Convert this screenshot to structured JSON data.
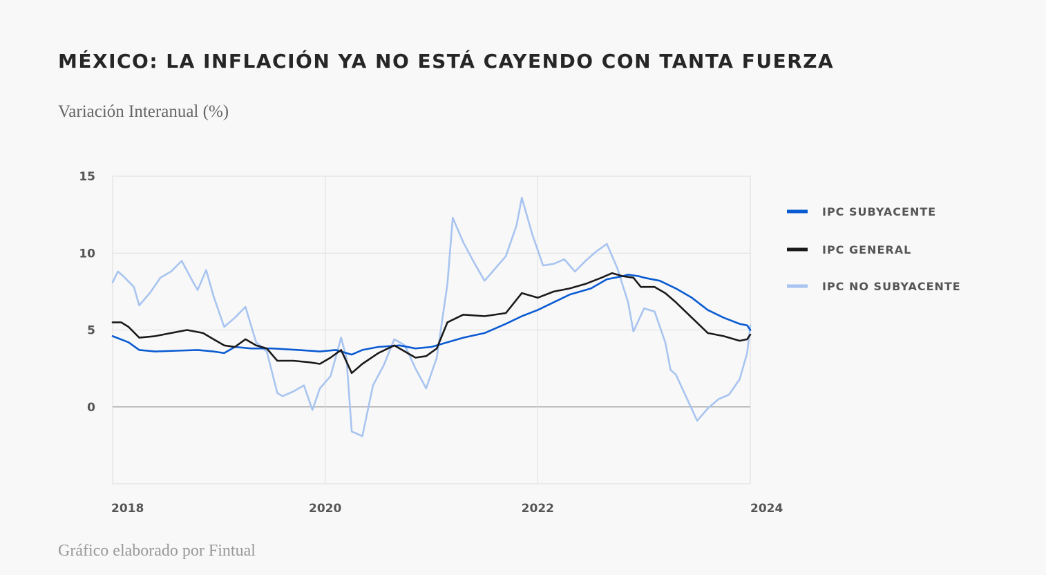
{
  "title": "MÉXICO: LA INFLACIÓN YA NO ESTÁ CAYENDO CON TANTA FUERZA",
  "subtitle": "Variación Interanual (%)",
  "footer": "Gráfico elaborado por Fintual",
  "chart_data": {
    "type": "line",
    "title": "MÉXICO: LA INFLACIÓN YA NO ESTÁ CAYENDO CON TANTA FUERZA",
    "subtitle": "Variación Interanual (%)",
    "xlabel": "",
    "ylabel": "Variación Interanual (%)",
    "x_range": [
      2018,
      2024
    ],
    "ylim": [
      -5,
      15
    ],
    "x_ticks": [
      "2018",
      "2020",
      "2022",
      "2024"
    ],
    "y_ticks": [
      "15",
      "10",
      "5",
      "0"
    ],
    "y_tick_values": [
      15,
      10,
      5,
      0
    ],
    "grid": true,
    "legend_position": "right",
    "series": [
      {
        "name": "IPC SUBYACENTE",
        "color": "#0a5bd2",
        "points": [
          [
            2018.0,
            4.6
          ],
          [
            2018.15,
            4.2
          ],
          [
            2018.25,
            3.7
          ],
          [
            2018.4,
            3.6
          ],
          [
            2018.6,
            3.65
          ],
          [
            2018.8,
            3.7
          ],
          [
            2018.95,
            3.6
          ],
          [
            2019.05,
            3.5
          ],
          [
            2019.15,
            3.9
          ],
          [
            2019.3,
            3.8
          ],
          [
            2019.5,
            3.8
          ],
          [
            2019.75,
            3.7
          ],
          [
            2019.95,
            3.6
          ],
          [
            2020.1,
            3.7
          ],
          [
            2020.25,
            3.4
          ],
          [
            2020.35,
            3.7
          ],
          [
            2020.5,
            3.9
          ],
          [
            2020.7,
            4.0
          ],
          [
            2020.85,
            3.8
          ],
          [
            2021.0,
            3.9
          ],
          [
            2021.1,
            4.1
          ],
          [
            2021.3,
            4.5
          ],
          [
            2021.5,
            4.8
          ],
          [
            2021.7,
            5.4
          ],
          [
            2021.85,
            5.9
          ],
          [
            2022.0,
            6.3
          ],
          [
            2022.15,
            6.8
          ],
          [
            2022.3,
            7.3
          ],
          [
            2022.5,
            7.7
          ],
          [
            2022.65,
            8.3
          ],
          [
            2022.8,
            8.5
          ],
          [
            2022.85,
            8.6
          ],
          [
            2022.95,
            8.5
          ],
          [
            2023.0,
            8.4
          ],
          [
            2023.15,
            8.2
          ],
          [
            2023.3,
            7.7
          ],
          [
            2023.45,
            7.1
          ],
          [
            2023.6,
            6.3
          ],
          [
            2023.75,
            5.8
          ],
          [
            2023.9,
            5.4
          ],
          [
            2023.97,
            5.3
          ],
          [
            2024.0,
            5.0
          ]
        ]
      },
      {
        "name": "IPC GENERAL",
        "color": "#1a1a1a",
        "points": [
          [
            2018.0,
            5.5
          ],
          [
            2018.08,
            5.5
          ],
          [
            2018.15,
            5.2
          ],
          [
            2018.25,
            4.5
          ],
          [
            2018.4,
            4.6
          ],
          [
            2018.55,
            4.8
          ],
          [
            2018.7,
            5.0
          ],
          [
            2018.85,
            4.8
          ],
          [
            2018.95,
            4.4
          ],
          [
            2019.05,
            4.0
          ],
          [
            2019.15,
            3.9
          ],
          [
            2019.25,
            4.4
          ],
          [
            2019.35,
            4.0
          ],
          [
            2019.45,
            3.8
          ],
          [
            2019.55,
            3.0
          ],
          [
            2019.7,
            3.0
          ],
          [
            2019.85,
            2.9
          ],
          [
            2019.95,
            2.8
          ],
          [
            2020.05,
            3.2
          ],
          [
            2020.15,
            3.7
          ],
          [
            2020.25,
            2.2
          ],
          [
            2020.35,
            2.8
          ],
          [
            2020.5,
            3.5
          ],
          [
            2020.65,
            4.0
          ],
          [
            2020.85,
            3.2
          ],
          [
            2020.95,
            3.3
          ],
          [
            2021.05,
            3.8
          ],
          [
            2021.15,
            5.5
          ],
          [
            2021.3,
            6.0
          ],
          [
            2021.5,
            5.9
          ],
          [
            2021.7,
            6.1
          ],
          [
            2021.85,
            7.4
          ],
          [
            2022.0,
            7.1
          ],
          [
            2022.15,
            7.5
          ],
          [
            2022.3,
            7.7
          ],
          [
            2022.45,
            8.0
          ],
          [
            2022.6,
            8.4
          ],
          [
            2022.7,
            8.7
          ],
          [
            2022.8,
            8.5
          ],
          [
            2022.9,
            8.4
          ],
          [
            2022.97,
            7.8
          ],
          [
            2023.1,
            7.8
          ],
          [
            2023.2,
            7.4
          ],
          [
            2023.3,
            6.8
          ],
          [
            2023.45,
            5.8
          ],
          [
            2023.6,
            4.8
          ],
          [
            2023.75,
            4.6
          ],
          [
            2023.9,
            4.3
          ],
          [
            2023.97,
            4.4
          ],
          [
            2024.0,
            4.7
          ]
        ]
      },
      {
        "name": "IPC NO SUBYACENTE",
        "color": "#a8c4f0",
        "points": [
          [
            2018.0,
            8.1
          ],
          [
            2018.05,
            8.8
          ],
          [
            2018.1,
            8.5
          ],
          [
            2018.2,
            7.8
          ],
          [
            2018.25,
            6.6
          ],
          [
            2018.35,
            7.4
          ],
          [
            2018.45,
            8.4
          ],
          [
            2018.55,
            8.8
          ],
          [
            2018.65,
            9.5
          ],
          [
            2018.75,
            8.2
          ],
          [
            2018.8,
            7.6
          ],
          [
            2018.88,
            8.9
          ],
          [
            2018.95,
            7.2
          ],
          [
            2019.05,
            5.2
          ],
          [
            2019.15,
            5.8
          ],
          [
            2019.25,
            6.5
          ],
          [
            2019.35,
            4.2
          ],
          [
            2019.45,
            3.6
          ],
          [
            2019.55,
            0.9
          ],
          [
            2019.6,
            0.7
          ],
          [
            2019.7,
            1.0
          ],
          [
            2019.8,
            1.4
          ],
          [
            2019.88,
            -0.2
          ],
          [
            2019.95,
            1.2
          ],
          [
            2020.05,
            2.0
          ],
          [
            2020.15,
            4.5
          ],
          [
            2020.2,
            3.2
          ],
          [
            2020.25,
            -1.6
          ],
          [
            2020.35,
            -1.9
          ],
          [
            2020.45,
            1.4
          ],
          [
            2020.55,
            2.7
          ],
          [
            2020.65,
            4.4
          ],
          [
            2020.75,
            4.0
          ],
          [
            2020.85,
            2.5
          ],
          [
            2020.95,
            1.2
          ],
          [
            2021.05,
            3.2
          ],
          [
            2021.15,
            8.0
          ],
          [
            2021.2,
            12.3
          ],
          [
            2021.3,
            10.7
          ],
          [
            2021.4,
            9.4
          ],
          [
            2021.5,
            8.2
          ],
          [
            2021.6,
            9.0
          ],
          [
            2021.7,
            9.8
          ],
          [
            2021.8,
            11.8
          ],
          [
            2021.85,
            13.6
          ],
          [
            2021.95,
            11.2
          ],
          [
            2022.05,
            9.2
          ],
          [
            2022.15,
            9.3
          ],
          [
            2022.25,
            9.6
          ],
          [
            2022.35,
            8.8
          ],
          [
            2022.45,
            9.5
          ],
          [
            2022.55,
            10.1
          ],
          [
            2022.65,
            10.6
          ],
          [
            2022.75,
            9.0
          ],
          [
            2022.85,
            6.8
          ],
          [
            2022.9,
            4.9
          ],
          [
            2023.0,
            6.4
          ],
          [
            2023.1,
            6.2
          ],
          [
            2023.2,
            4.2
          ],
          [
            2023.25,
            2.4
          ],
          [
            2023.3,
            2.1
          ],
          [
            2023.4,
            0.6
          ],
          [
            2023.5,
            -0.9
          ],
          [
            2023.6,
            -0.1
          ],
          [
            2023.7,
            0.5
          ],
          [
            2023.8,
            0.8
          ],
          [
            2023.9,
            1.8
          ],
          [
            2023.97,
            3.5
          ],
          [
            2024.0,
            5.3
          ]
        ]
      }
    ]
  }
}
